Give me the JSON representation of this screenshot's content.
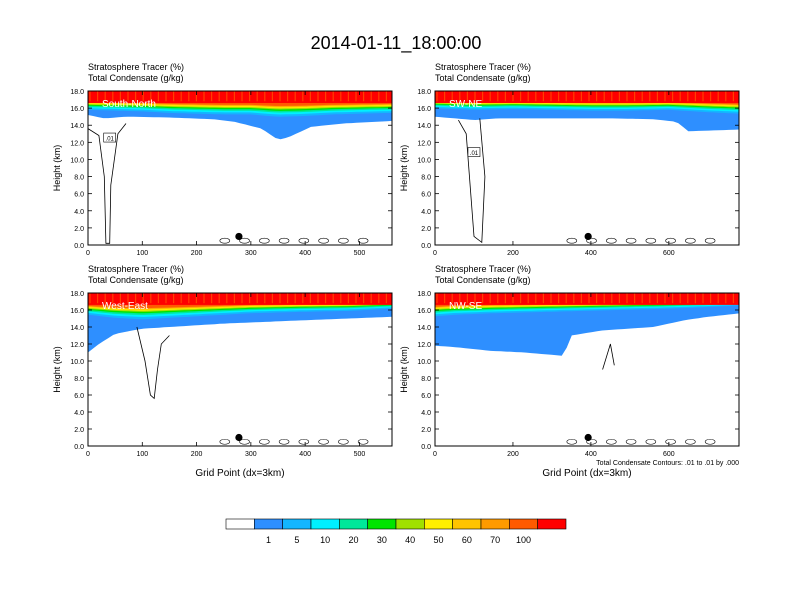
{
  "title": "2014-01-11_18:00:00",
  "panel_header": {
    "line1_label": "Stratosphere Tracer",
    "line1_unit": "(%)",
    "line2_label": "Total Condensate",
    "line2_unit": "(g/kg)"
  },
  "footer_note": "Total Condensate Contours: .01 to .01 by .000",
  "colorbar": {
    "colors": [
      "#ffffff",
      "#2e8fff",
      "#13b6ff",
      "#00f0ff",
      "#00e89a",
      "#00e400",
      "#a0e000",
      "#fff000",
      "#ffc400",
      "#ff9a00",
      "#ff5a00",
      "#ff0000"
    ],
    "labels": [
      "1",
      "5",
      "10",
      "20",
      "30",
      "40",
      "50",
      "60",
      "70",
      "100"
    ]
  },
  "chart_data": [
    {
      "type": "heatmap",
      "panel": "top-left",
      "label": "South-North",
      "xlabel": "",
      "ylabel": "Height (km)",
      "xlim": [
        0,
        560
      ],
      "ylim": [
        0,
        18
      ],
      "x_ticks": [
        "0",
        "100",
        "200",
        "300",
        "400",
        "500"
      ],
      "x_tick_values": [
        0,
        100,
        200,
        300,
        400,
        500
      ],
      "y_ticks": [
        "0.0",
        "2.0",
        "4.0",
        "6.0",
        "8.0",
        "10.0",
        "12.0",
        "14.0",
        "16.0",
        "18.0"
      ],
      "contour_label": ".01",
      "marker": {
        "x": 278,
        "y": 1.0
      },
      "tracer_band": [
        [
          0,
          15.6
        ],
        [
          50,
          15.5
        ],
        [
          100,
          15.4
        ],
        [
          150,
          15.2
        ],
        [
          200,
          15.1
        ],
        [
          250,
          15.0
        ],
        [
          300,
          15.0
        ],
        [
          350,
          14.7
        ],
        [
          400,
          14.8
        ],
        [
          450,
          15.0
        ],
        [
          500,
          15.1
        ],
        [
          560,
          15.2
        ]
      ],
      "intrusion": [
        [
          0,
          15.2
        ],
        [
          30,
          14.8
        ],
        [
          70,
          15.0
        ],
        [
          150,
          14.9
        ],
        [
          230,
          14.7
        ],
        [
          270,
          14.4
        ],
        [
          320,
          13.6
        ],
        [
          350,
          12.3
        ],
        [
          370,
          12.6
        ],
        [
          410,
          13.8
        ],
        [
          470,
          14.2
        ],
        [
          560,
          14.5
        ]
      ],
      "outline": [
        [
          0,
          13.6
        ],
        [
          20,
          12.8
        ],
        [
          30,
          8.0
        ],
        [
          33,
          0.2
        ],
        [
          40,
          0.2
        ],
        [
          42,
          7.0
        ],
        [
          55,
          13.0
        ],
        [
          70,
          14.2
        ]
      ]
    },
    {
      "type": "heatmap",
      "panel": "top-right",
      "label": "SW-NE",
      "xlabel": "",
      "ylabel": "Height (km)",
      "xlim": [
        0,
        780
      ],
      "ylim": [
        0,
        18
      ],
      "x_ticks": [
        "0",
        "200",
        "400",
        "600"
      ],
      "x_tick_values": [
        0,
        200,
        400,
        600
      ],
      "y_ticks": [
        "0.0",
        "2.0",
        "4.0",
        "6.0",
        "8.0",
        "10.0",
        "12.0",
        "14.0",
        "16.0",
        "18.0"
      ],
      "contour_label": ".01",
      "marker": {
        "x": 393,
        "y": 1.0
      },
      "tracer_band": [
        [
          0,
          15.8
        ],
        [
          100,
          15.6
        ],
        [
          200,
          15.7
        ],
        [
          300,
          15.6
        ],
        [
          400,
          15.5
        ],
        [
          500,
          15.5
        ],
        [
          600,
          15.6
        ],
        [
          700,
          15.3
        ],
        [
          780,
          15.1
        ]
      ],
      "intrusion": [
        [
          0,
          15.0
        ],
        [
          100,
          14.6
        ],
        [
          160,
          14.8
        ],
        [
          300,
          14.8
        ],
        [
          450,
          14.8
        ],
        [
          560,
          14.7
        ],
        [
          620,
          14.4
        ],
        [
          650,
          13.3
        ],
        [
          720,
          13.4
        ],
        [
          780,
          13.5
        ]
      ],
      "outline": [
        [
          60,
          14.6
        ],
        [
          80,
          13.0
        ],
        [
          100,
          1.0
        ],
        [
          120,
          0.3
        ],
        [
          128,
          8.0
        ],
        [
          115,
          14.8
        ]
      ]
    },
    {
      "type": "heatmap",
      "panel": "bottom-left",
      "label": "West-East",
      "xlabel": "Grid Point (dx=3km)",
      "ylabel": "Height (km)",
      "xlim": [
        0,
        560
      ],
      "ylim": [
        0,
        18
      ],
      "x_ticks": [
        "0",
        "100",
        "200",
        "300",
        "400",
        "500"
      ],
      "x_tick_values": [
        0,
        100,
        200,
        300,
        400,
        500
      ],
      "y_ticks": [
        "0.0",
        "2.0",
        "4.0",
        "6.0",
        "8.0",
        "10.0",
        "12.0",
        "14.0",
        "16.0",
        "18.0"
      ],
      "contour_label": "",
      "marker": {
        "x": 278,
        "y": 1.0
      },
      "tracer_band": [
        [
          0,
          15.2
        ],
        [
          50,
          14.8
        ],
        [
          100,
          14.6
        ],
        [
          150,
          14.8
        ],
        [
          200,
          15.0
        ],
        [
          300,
          15.4
        ],
        [
          400,
          15.6
        ],
        [
          480,
          15.7
        ],
        [
          560,
          16.0
        ]
      ],
      "intrusion": [
        [
          0,
          11.0
        ],
        [
          20,
          12.0
        ],
        [
          50,
          13.2
        ],
        [
          100,
          13.8
        ],
        [
          150,
          14.0
        ],
        [
          250,
          14.4
        ],
        [
          400,
          14.8
        ],
        [
          560,
          15.2
        ]
      ],
      "outline": [
        [
          90,
          14.0
        ],
        [
          105,
          10.0
        ],
        [
          115,
          6.0
        ],
        [
          122,
          5.6
        ],
        [
          128,
          9.0
        ],
        [
          135,
          12.0
        ],
        [
          150,
          13.0
        ]
      ]
    },
    {
      "type": "heatmap",
      "panel": "bottom-right",
      "label": "NW-SE",
      "xlabel": "Grid Point (dx=3km)",
      "ylabel": "Height (km)",
      "xlim": [
        0,
        780
      ],
      "ylim": [
        0,
        18
      ],
      "x_ticks": [
        "0",
        "200",
        "400",
        "600"
      ],
      "x_tick_values": [
        0,
        200,
        400,
        600
      ],
      "y_ticks": [
        "0.0",
        "2.0",
        "4.0",
        "6.0",
        "8.0",
        "10.0",
        "12.0",
        "14.0",
        "16.0",
        "18.0"
      ],
      "contour_label": "",
      "marker": {
        "x": 393,
        "y": 1.0
      },
      "tracer_band": [
        [
          0,
          15.0
        ],
        [
          50,
          15.2
        ],
        [
          150,
          15.4
        ],
        [
          300,
          15.6
        ],
        [
          450,
          15.8
        ],
        [
          600,
          16.0
        ],
        [
          700,
          16.2
        ],
        [
          780,
          16.4
        ]
      ],
      "intrusion": [
        [
          0,
          11.8
        ],
        [
          60,
          11.6
        ],
        [
          140,
          11.2
        ],
        [
          230,
          11.0
        ],
        [
          330,
          10.6
        ],
        [
          350,
          13.0
        ],
        [
          430,
          13.6
        ],
        [
          560,
          14.0
        ],
        [
          640,
          14.8
        ],
        [
          700,
          15.2
        ],
        [
          780,
          15.6
        ]
      ],
      "outline": [
        [
          430,
          9.0
        ],
        [
          450,
          12.0
        ],
        [
          460,
          9.5
        ]
      ]
    }
  ]
}
